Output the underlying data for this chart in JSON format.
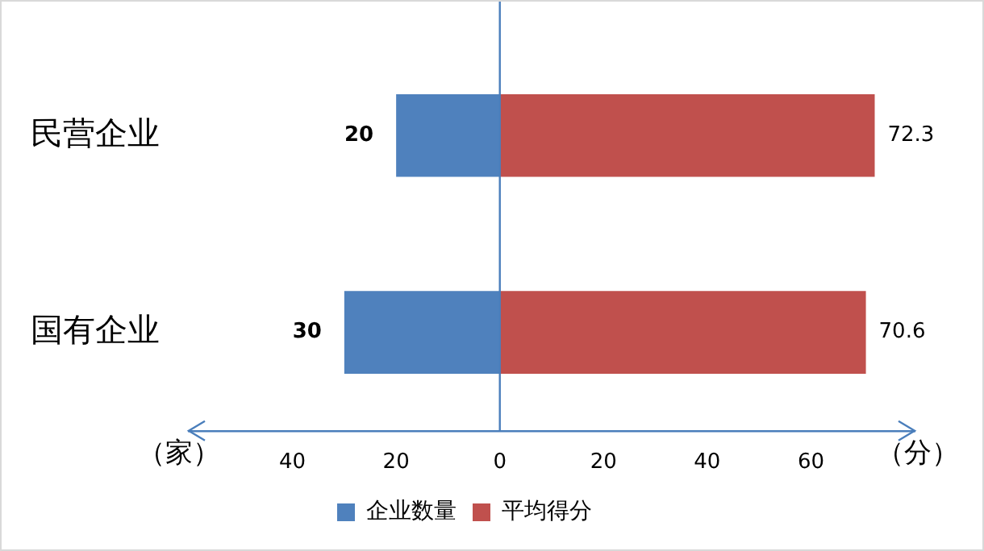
{
  "chart_data": {
    "type": "bar",
    "orientation": "horizontal",
    "categories": [
      "民营企业",
      "国有企业"
    ],
    "ref_lines": [
      {
        "axis": "x",
        "value": 0,
        "color": "#4a7ebb"
      }
    ],
    "series": [
      {
        "name": "企业数量",
        "color": "#4f81bd",
        "values": [
          20,
          30
        ],
        "base": [
          -20,
          -30
        ],
        "value_labels": [
          "20",
          "30"
        ]
      },
      {
        "name": "平均得分",
        "color": "#c0504d",
        "values": [
          72.3,
          70.6
        ],
        "value_labels": [
          "72.3",
          "70.6"
        ]
      }
    ],
    "xlim": [
      -60,
      80
    ],
    "xticks": [
      {
        "value": -40,
        "label": "40"
      },
      {
        "value": -20,
        "label": "20"
      },
      0,
      20,
      40,
      60
    ],
    "annotations": [
      "（家）",
      "（分）"
    ],
    "grid": false,
    "legend": "bottom"
  }
}
